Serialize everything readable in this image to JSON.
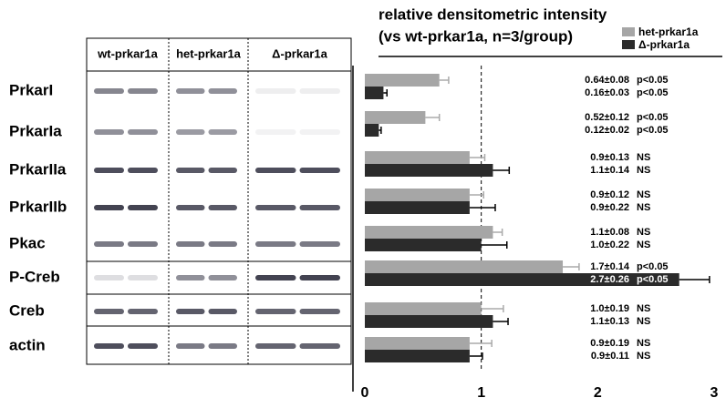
{
  "blot": {
    "lanes": [
      "wt-prkar1a",
      "het-prkar1a",
      "Δ-prkar1a"
    ],
    "rows": [
      "PrkarI",
      "PrkarIa",
      "PrkarIIa",
      "PrkarIIb",
      "Pkac",
      "P-Creb",
      "Creb",
      "actin"
    ]
  },
  "chart_data": {
    "type": "hbar",
    "title": "relative densitometric intensity",
    "subtitle": "(vs wt-prkar1a, n=3/group)",
    "categories": [
      null,
      null,
      null,
      null,
      null,
      null,
      null,
      null
    ],
    "series": [
      {
        "name": "het-prkar1a",
        "color": "#a6a6a6",
        "values": [
          0.64,
          0.52,
          0.9,
          0.9,
          1.1,
          1.7,
          1.0,
          0.9
        ],
        "errors": [
          0.08,
          0.12,
          0.13,
          0.12,
          0.08,
          0.14,
          0.19,
          0.19
        ],
        "value_labels": [
          "0.64±0.08",
          "0.52±0.12",
          "0.9±0.13",
          "0.9±0.12",
          "1.1±0.08",
          "1.7±0.14",
          "1.0±0.19",
          "0.9±0.19"
        ],
        "significance": [
          "p<0.05",
          "p<0.05",
          "NS",
          "NS",
          "NS",
          "p<0.05",
          "NS",
          "NS"
        ]
      },
      {
        "name": "Δ-prkar1a",
        "color": "#2b2b2b",
        "values": [
          0.16,
          0.12,
          1.1,
          0.9,
          1.0,
          2.7,
          1.1,
          0.9
        ],
        "errors": [
          0.03,
          0.02,
          0.14,
          0.22,
          0.22,
          0.26,
          0.13,
          0.11
        ],
        "value_labels": [
          "0.16±0.03",
          "0.12±0.02",
          "1.1±0.14",
          "0.9±0.22",
          "1.0±0.22",
          "2.7±0.26",
          "1.1±0.13",
          "0.9±0.11"
        ],
        "significance": [
          "p<0.05",
          "p<0.05",
          "NS",
          "NS",
          "NS",
          "p<0.05",
          "NS",
          "NS"
        ]
      }
    ],
    "xlim": [
      0,
      3
    ],
    "xticks": [
      0,
      1,
      2,
      3
    ],
    "reference_line": 1,
    "legend": "top-right"
  }
}
